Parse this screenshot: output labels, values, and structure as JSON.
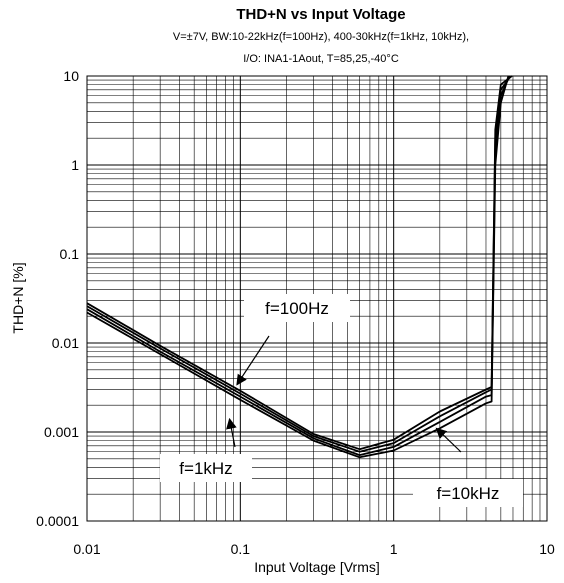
{
  "chart_data": {
    "type": "line",
    "title": "THD+N vs Input Voltage",
    "subtitle_lines": [
      "V=±7V, BW:10-22kHz(f=100Hz), 400-30kHz(f=1kHz, 10kHz),",
      "I/O: INA1-1Aout, T=85,25,-40°C"
    ],
    "xlabel": "Input Voltage [Vrms]",
    "ylabel": "THD+N [%]",
    "x_scale": "log",
    "y_scale": "log",
    "xlim": [
      0.01,
      10
    ],
    "ylim": [
      0.0001,
      10
    ],
    "x_tick_labels": [
      "0.01",
      "0.1",
      "1",
      "10"
    ],
    "y_tick_labels": [
      "10",
      "1",
      "0.1",
      "0.01",
      "0.001",
      "0.0001"
    ],
    "grid": true,
    "legend": "none",
    "series": [
      {
        "values": [
          [
            0.01,
            0.022
          ],
          [
            0.03,
            0.0075
          ],
          [
            0.1,
            0.0023
          ],
          [
            0.3,
            0.0008
          ],
          [
            0.6,
            0.00052
          ],
          [
            1.0,
            0.00062
          ],
          [
            2.0,
            0.0011
          ],
          [
            4.0,
            0.0021
          ],
          [
            4.35,
            0.0022
          ],
          [
            4.6,
            1.0
          ],
          [
            5.0,
            5.0
          ],
          [
            5.6,
            10.0
          ]
        ]
      },
      {
        "values": [
          [
            0.01,
            0.024
          ],
          [
            0.03,
            0.008
          ],
          [
            0.1,
            0.0025
          ],
          [
            0.3,
            0.00085
          ],
          [
            0.6,
            0.00055
          ],
          [
            1.0,
            0.00068
          ],
          [
            2.0,
            0.0013
          ],
          [
            4.0,
            0.0025
          ],
          [
            4.35,
            0.0026
          ],
          [
            4.6,
            1.5
          ],
          [
            5.0,
            6.0
          ],
          [
            5.7,
            10.0
          ]
        ]
      },
      {
        "values": [
          [
            0.01,
            0.026
          ],
          [
            0.03,
            0.0087
          ],
          [
            0.1,
            0.0027
          ],
          [
            0.3,
            0.0009
          ],
          [
            0.6,
            0.0006
          ],
          [
            1.0,
            0.00075
          ],
          [
            2.0,
            0.0015
          ],
          [
            4.0,
            0.0028
          ],
          [
            4.35,
            0.003
          ],
          [
            4.6,
            2.0
          ],
          [
            5.0,
            7.0
          ],
          [
            5.8,
            10.0
          ]
        ]
      },
      {
        "values": [
          [
            0.01,
            0.028
          ],
          [
            0.03,
            0.0093
          ],
          [
            0.1,
            0.0029
          ],
          [
            0.3,
            0.00095
          ],
          [
            0.6,
            0.00064
          ],
          [
            1.0,
            0.00082
          ],
          [
            2.0,
            0.0017
          ],
          [
            4.0,
            0.003
          ],
          [
            4.35,
            0.0032
          ],
          [
            4.6,
            2.5
          ],
          [
            5.0,
            8.0
          ],
          [
            5.9,
            10.0
          ]
        ]
      }
    ],
    "annotations": [
      {
        "text": "f=100Hz",
        "points_to": [
          0.095,
          0.0034
        ]
      },
      {
        "text": "f=1kHz",
        "points_to": [
          0.085,
          0.0014
        ]
      },
      {
        "text": "f=10kHz",
        "points_to": [
          1.9,
          0.0011
        ]
      }
    ]
  }
}
